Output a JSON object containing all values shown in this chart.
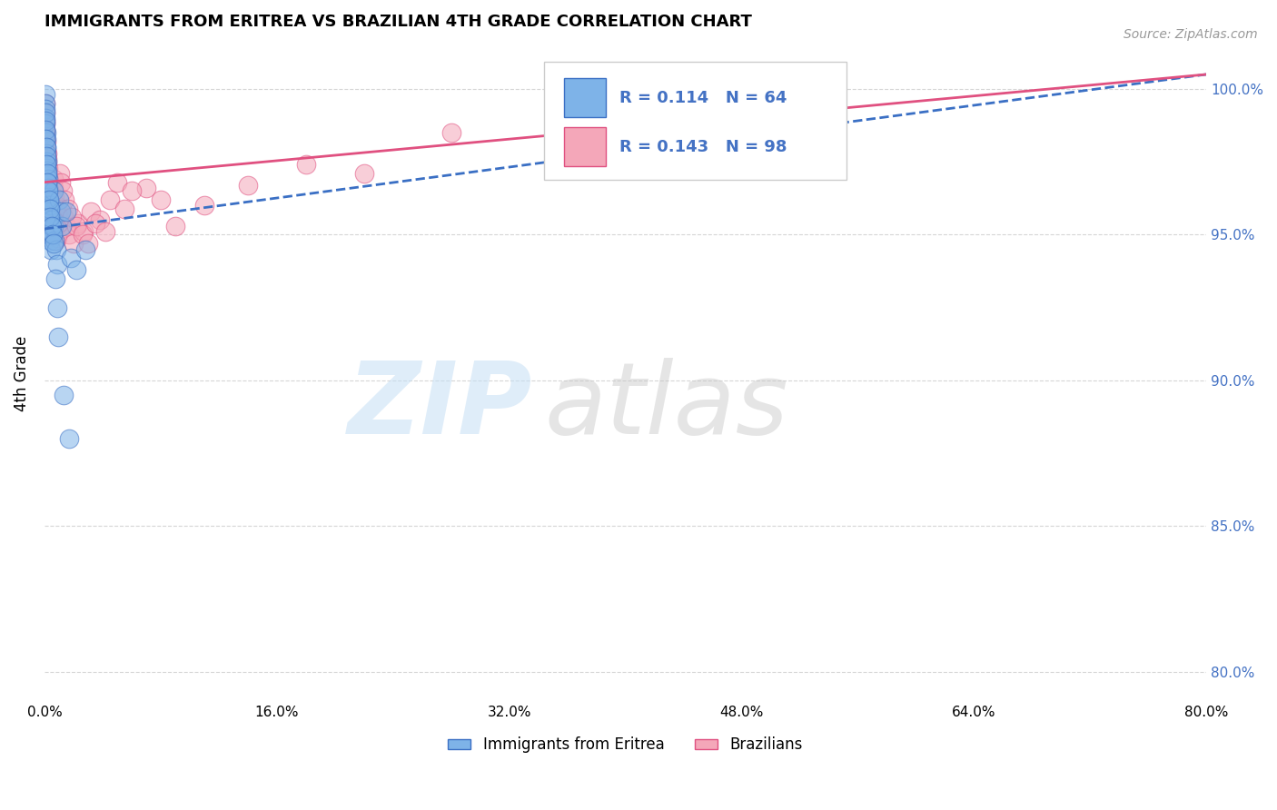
{
  "title": "IMMIGRANTS FROM ERITREA VS BRAZILIAN 4TH GRADE CORRELATION CHART",
  "source": "Source: ZipAtlas.com",
  "ylabel": "4th Grade",
  "xlim": [
    0.0,
    80.0
  ],
  "ylim": [
    79.0,
    101.5
  ],
  "yticks": [
    80.0,
    85.0,
    90.0,
    95.0,
    100.0
  ],
  "ytick_labels": [
    "80.0%",
    "85.0%",
    "90.0%",
    "95.0%",
    "100.0%"
  ],
  "xticks": [
    0.0,
    16.0,
    32.0,
    48.0,
    64.0,
    80.0
  ],
  "blue_R": 0.114,
  "blue_N": 64,
  "pink_R": 0.143,
  "pink_N": 98,
  "blue_color": "#7EB3E8",
  "pink_color": "#F4A7B9",
  "blue_edge_color": "#3A6FC4",
  "pink_edge_color": "#E05080",
  "blue_line_color": "#3A6FC4",
  "pink_line_color": "#E05080",
  "blue_scatter_x": [
    0.05,
    0.06,
    0.07,
    0.08,
    0.09,
    0.1,
    0.11,
    0.12,
    0.13,
    0.14,
    0.15,
    0.16,
    0.17,
    0.18,
    0.19,
    0.2,
    0.21,
    0.22,
    0.23,
    0.24,
    0.25,
    0.27,
    0.29,
    0.31,
    0.33,
    0.36,
    0.39,
    0.42,
    0.45,
    0.5,
    0.55,
    0.6,
    0.65,
    0.7,
    0.8,
    0.9,
    1.0,
    1.1,
    1.2,
    1.5,
    1.8,
    2.2,
    2.8,
    0.04,
    0.05,
    0.06,
    0.08,
    0.1,
    0.12,
    0.15,
    0.18,
    0.22,
    0.26,
    0.3,
    0.35,
    0.4,
    0.48,
    0.55,
    0.65,
    0.75,
    0.85,
    0.95,
    1.3,
    1.7
  ],
  "blue_scatter_y": [
    99.8,
    99.5,
    99.3,
    99.0,
    98.8,
    98.5,
    98.3,
    98.0,
    97.8,
    97.5,
    97.3,
    97.0,
    96.8,
    96.5,
    96.3,
    96.0,
    97.5,
    97.2,
    96.9,
    96.6,
    96.3,
    96.0,
    95.8,
    95.5,
    95.3,
    95.0,
    94.8,
    94.5,
    96.0,
    95.5,
    95.0,
    96.5,
    95.3,
    94.8,
    94.5,
    94.0,
    96.2,
    95.8,
    95.3,
    95.8,
    94.2,
    93.8,
    94.5,
    99.2,
    98.9,
    98.6,
    98.3,
    98.0,
    97.7,
    97.4,
    97.1,
    96.8,
    96.5,
    96.2,
    95.9,
    95.6,
    95.3,
    95.0,
    94.7,
    93.5,
    92.5,
    91.5,
    89.5,
    88.0
  ],
  "pink_scatter_x": [
    0.04,
    0.05,
    0.06,
    0.07,
    0.08,
    0.09,
    0.1,
    0.11,
    0.12,
    0.13,
    0.14,
    0.15,
    0.16,
    0.17,
    0.18,
    0.19,
    0.2,
    0.21,
    0.22,
    0.23,
    0.24,
    0.25,
    0.27,
    0.29,
    0.31,
    0.33,
    0.35,
    0.37,
    0.39,
    0.41,
    0.43,
    0.46,
    0.49,
    0.52,
    0.55,
    0.58,
    0.62,
    0.66,
    0.7,
    0.75,
    0.8,
    0.85,
    0.9,
    0.95,
    1.0,
    1.1,
    1.2,
    1.3,
    1.5,
    1.7,
    2.0,
    2.3,
    2.7,
    3.2,
    3.8,
    4.5,
    5.5,
    7.0,
    9.0,
    11.0,
    14.0,
    18.0,
    22.0,
    28.0,
    0.06,
    0.08,
    0.1,
    0.13,
    0.17,
    0.21,
    0.25,
    0.3,
    0.35,
    0.4,
    0.45,
    0.5,
    0.55,
    0.6,
    0.65,
    0.72,
    0.8,
    0.88,
    0.96,
    1.05,
    1.15,
    1.25,
    1.4,
    1.6,
    1.9,
    2.2,
    2.6,
    3.0,
    3.5,
    4.2,
    5.0,
    6.0,
    8.0,
    50.0
  ],
  "pink_scatter_y": [
    99.5,
    99.2,
    98.9,
    98.6,
    98.3,
    98.0,
    97.7,
    97.4,
    97.1,
    96.8,
    96.5,
    96.2,
    97.8,
    97.5,
    97.2,
    96.9,
    96.6,
    96.3,
    96.0,
    97.3,
    97.0,
    96.7,
    96.4,
    96.1,
    95.8,
    95.5,
    96.8,
    96.5,
    96.2,
    95.9,
    95.6,
    95.3,
    95.0,
    96.5,
    96.2,
    95.9,
    95.6,
    95.3,
    95.0,
    94.8,
    95.5,
    95.2,
    94.9,
    95.8,
    95.5,
    95.2,
    95.9,
    95.6,
    95.3,
    95.0,
    94.7,
    95.4,
    95.1,
    95.8,
    95.5,
    96.2,
    95.9,
    96.6,
    95.3,
    96.0,
    96.7,
    97.4,
    97.1,
    98.5,
    98.8,
    98.5,
    98.2,
    97.9,
    97.6,
    97.3,
    97.0,
    96.7,
    96.4,
    96.1,
    95.8,
    95.5,
    95.2,
    96.9,
    96.6,
    96.3,
    96.0,
    95.7,
    95.4,
    97.1,
    96.8,
    96.5,
    96.2,
    95.9,
    95.6,
    95.3,
    95.0,
    94.7,
    95.4,
    95.1,
    96.8,
    96.5,
    96.2,
    99.8
  ],
  "blue_line_x0": 0.0,
  "blue_line_y0": 95.2,
  "blue_line_x1": 80.0,
  "blue_line_y1": 100.5,
  "pink_line_x0": 0.0,
  "pink_line_y0": 96.8,
  "pink_line_x1": 80.0,
  "pink_line_y1": 100.5,
  "legend_items": [
    {
      "label": "Immigrants from Eritrea",
      "color": "#7EB3E8"
    },
    {
      "label": "Brazilians",
      "color": "#F4A7B9"
    }
  ],
  "background_color": "#ffffff",
  "grid_color": "#cccccc"
}
